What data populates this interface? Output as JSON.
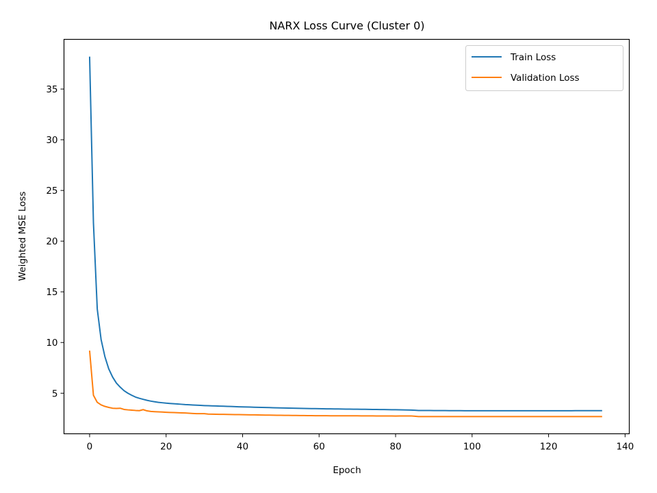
{
  "chart_data": {
    "type": "line",
    "title": "NARX Loss Curve (Cluster 0)",
    "xlabel": "Epoch",
    "ylabel": "Weighted MSE Loss",
    "xlim": [
      -6.7,
      141.1
    ],
    "ylim": [
      1.0,
      39.9
    ],
    "xticks": [
      0,
      20,
      40,
      60,
      80,
      100,
      120,
      140
    ],
    "yticks": [
      5,
      10,
      15,
      20,
      25,
      30,
      35
    ],
    "grid": false,
    "legend_position": "top-right",
    "x": "epochs 0-134",
    "series": [
      {
        "name": "Train Loss",
        "color": "#1f77b4",
        "keypoints": [
          [
            0,
            38.2
          ],
          [
            1,
            21.8
          ],
          [
            2,
            13.3
          ],
          [
            3,
            10.3
          ],
          [
            4,
            8.6
          ],
          [
            5,
            7.4
          ],
          [
            6,
            6.6
          ],
          [
            7,
            6.0
          ],
          [
            8,
            5.6
          ],
          [
            9,
            5.25
          ],
          [
            10,
            5.0
          ],
          [
            11,
            4.8
          ],
          [
            12,
            4.62
          ],
          [
            13,
            4.5
          ],
          [
            14,
            4.4
          ],
          [
            15,
            4.3
          ],
          [
            16,
            4.22
          ],
          [
            18,
            4.1
          ],
          [
            20,
            4.02
          ],
          [
            25,
            3.88
          ],
          [
            30,
            3.78
          ],
          [
            40,
            3.65
          ],
          [
            50,
            3.55
          ],
          [
            60,
            3.47
          ],
          [
            70,
            3.42
          ],
          [
            80,
            3.37
          ],
          [
            84,
            3.34
          ],
          [
            86,
            3.3
          ],
          [
            90,
            3.29
          ],
          [
            100,
            3.27
          ],
          [
            110,
            3.27
          ],
          [
            120,
            3.27
          ],
          [
            134,
            3.28
          ]
        ]
      },
      {
        "name": "Validation Loss",
        "color": "#ff7f0e",
        "keypoints": [
          [
            0,
            9.2
          ],
          [
            1,
            4.8
          ],
          [
            2,
            4.1
          ],
          [
            3,
            3.85
          ],
          [
            4,
            3.7
          ],
          [
            5,
            3.6
          ],
          [
            6,
            3.52
          ],
          [
            7,
            3.5
          ],
          [
            8,
            3.52
          ],
          [
            9,
            3.4
          ],
          [
            10,
            3.36
          ],
          [
            11,
            3.33
          ],
          [
            12,
            3.3
          ],
          [
            13,
            3.28
          ],
          [
            14,
            3.38
          ],
          [
            15,
            3.26
          ],
          [
            16,
            3.2
          ],
          [
            20,
            3.12
          ],
          [
            25,
            3.05
          ],
          [
            28,
            2.98
          ],
          [
            30,
            2.98
          ],
          [
            31,
            2.94
          ],
          [
            40,
            2.88
          ],
          [
            50,
            2.82
          ],
          [
            60,
            2.78
          ],
          [
            70,
            2.77
          ],
          [
            80,
            2.75
          ],
          [
            84,
            2.76
          ],
          [
            86,
            2.7
          ],
          [
            100,
            2.7
          ],
          [
            120,
            2.7
          ],
          [
            134,
            2.7
          ]
        ]
      }
    ]
  }
}
